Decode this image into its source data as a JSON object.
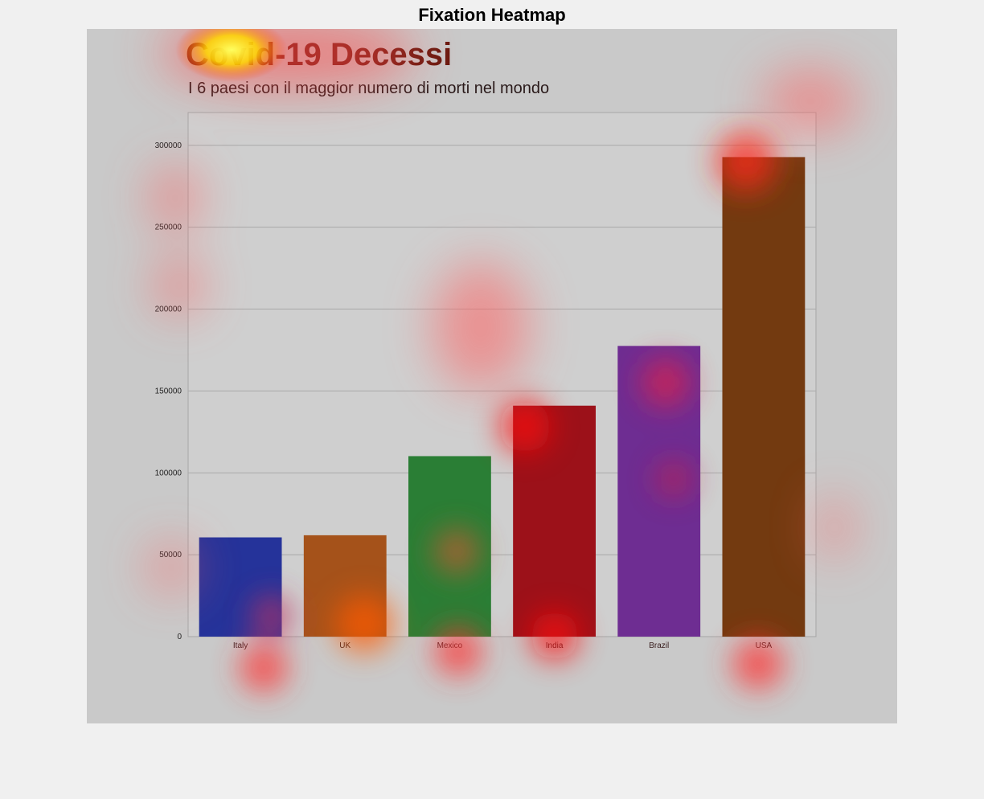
{
  "figure": {
    "title": "Fixation Heatmap"
  },
  "chart_data": {
    "type": "bar",
    "title": "Covid-19 Decessi",
    "subtitle": "I 6 paesi con il maggior numero di morti nel mondo",
    "categories": [
      "Italy",
      "UK",
      "Mexico",
      "India",
      "Brazil",
      "USA"
    ],
    "values": [
      60600,
      61900,
      110200,
      141000,
      177500,
      292800
    ],
    "colors": [
      "#25339a",
      "#a5521a",
      "#2a7e35",
      "#9c1119",
      "#6e2d92",
      "#733a10"
    ],
    "ylim": [
      0,
      320000
    ],
    "yticks": [
      0,
      50000,
      100000,
      150000,
      200000,
      250000,
      300000
    ],
    "yticklabels": [
      "0",
      "50000",
      "100000",
      "150000",
      "200000",
      "250000",
      "300000"
    ],
    "grid": true
  }
}
